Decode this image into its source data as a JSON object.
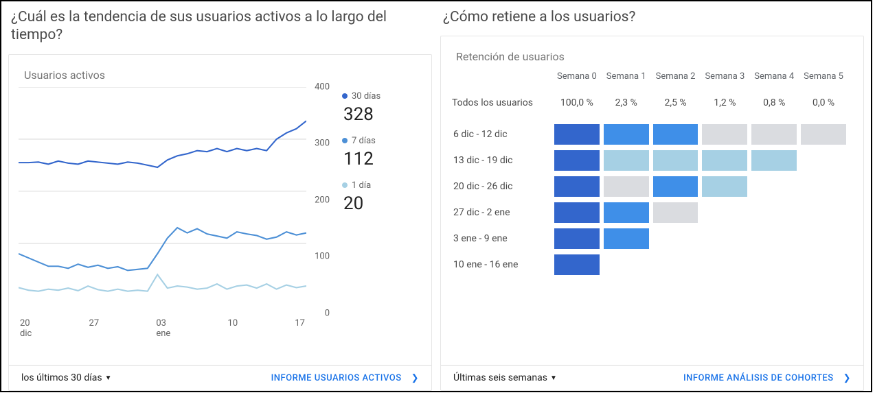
{
  "left": {
    "question": "¿Cuál es la tendencia de sus usuarios activos a lo largo del tiempo?",
    "card_title": "Usuarios activos",
    "chart": {
      "type": "line",
      "ylim": [
        0,
        400
      ],
      "ytick_step": 100,
      "yticks": [
        0,
        100,
        200,
        300,
        400
      ],
      "ytick_fontsize": 13,
      "ytick_color": "#616161",
      "xticks": [
        {
          "top": "20",
          "bottom": "dic"
        },
        {
          "top": "27",
          "bottom": ""
        },
        {
          "top": "03",
          "bottom": "ene"
        },
        {
          "top": "10",
          "bottom": ""
        },
        {
          "top": "17",
          "bottom": ""
        }
      ],
      "grid_color": "#dadada",
      "background_color": "#ffffff",
      "series": [
        {
          "key": "30d",
          "label": "30 días",
          "value": "328",
          "color": "#3366cc",
          "line_width": 2,
          "points": [
            255,
            255,
            256,
            252,
            258,
            254,
            252,
            258,
            256,
            254,
            252,
            256,
            254,
            250,
            246,
            260,
            268,
            272,
            278,
            276,
            282,
            276,
            282,
            278,
            282,
            278,
            300,
            312,
            320,
            335
          ]
        },
        {
          "key": "7d",
          "label": "7 días",
          "value": "112",
          "color": "#4d90d6",
          "line_width": 2,
          "points": [
            80,
            72,
            64,
            56,
            56,
            52,
            60,
            54,
            58,
            52,
            55,
            48,
            50,
            52,
            80,
            110,
            130,
            120,
            128,
            118,
            114,
            110,
            122,
            118,
            115,
            108,
            112,
            122,
            116,
            120
          ]
        },
        {
          "key": "1d",
          "label": "1 día",
          "value": "20",
          "color": "#a6d0e4",
          "line_width": 2,
          "points": [
            15,
            10,
            8,
            12,
            10,
            14,
            9,
            18,
            11,
            8,
            12,
            8,
            10,
            8,
            40,
            14,
            18,
            16,
            12,
            14,
            22,
            12,
            18,
            20,
            14,
            22,
            12,
            20,
            15,
            18
          ]
        }
      ]
    },
    "range_label": "los últimos 30 días",
    "report_link": "INFORME USUARIOS ACTIVOS"
  },
  "right": {
    "question": "¿Cómo retiene a los usuarios?",
    "card_title": "Retención de usuarios",
    "cohort": {
      "type": "heatmap",
      "columns": [
        "Semana 0",
        "Semana 1",
        "Semana 2",
        "Semana 3",
        "Semana 4",
        "Semana 5"
      ],
      "summary_label": "Todos los usuarios",
      "summary_values": [
        "100,0 %",
        "2,3 %",
        "2,5 %",
        "1,2 %",
        "0,8 %",
        "0,0 %"
      ],
      "rows": [
        {
          "label": "6 dic - 12 dic",
          "cells": [
            "#3366cc",
            "#3f8fe8",
            "#3f8fe8",
            "#dadce0",
            "#dadce0",
            "#dadce0"
          ]
        },
        {
          "label": "13 dic - 19 dic",
          "cells": [
            "#3366cc",
            "#a6d0e4",
            "#a6d0e4",
            "#a6d0e4",
            "#a6d0e4",
            null
          ]
        },
        {
          "label": "20 dic - 26 dic",
          "cells": [
            "#3366cc",
            "#dadce0",
            "#3f8fe8",
            "#a6d0e4",
            null,
            null
          ]
        },
        {
          "label": "27 dic - 2 ene",
          "cells": [
            "#3366cc",
            "#3f8fe8",
            "#dadce0",
            null,
            null,
            null
          ]
        },
        {
          "label": "3 ene - 9 ene",
          "cells": [
            "#3366cc",
            "#3f8fe8",
            null,
            null,
            null,
            null
          ]
        },
        {
          "label": "10 ene - 16 ene",
          "cells": [
            "#3366cc",
            null,
            null,
            null,
            null,
            null
          ]
        }
      ]
    },
    "range_label": "Últimas seis semanas",
    "report_link": "INFORME ANÁLISIS DE COHORTES"
  }
}
